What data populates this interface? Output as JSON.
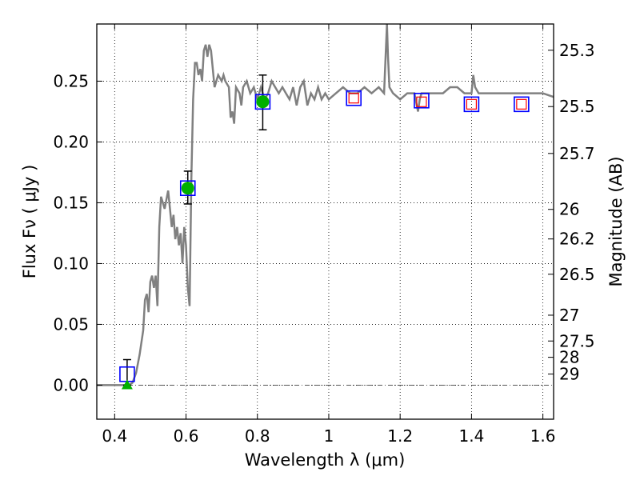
{
  "chart_data": {
    "type": "scatter",
    "title": "",
    "xlabel": "Wavelength  λ (μm)",
    "ylabel": "Flux  Fν  ( μJy )",
    "y2label": "Magnitude (AB)",
    "xlim": [
      0.35,
      1.63
    ],
    "ylim": [
      -0.028,
      0.297
    ],
    "grid": true,
    "x_ticks": [
      {
        "value": 0.4,
        "label": "0.4"
      },
      {
        "value": 0.6,
        "label": "0.6"
      },
      {
        "value": 0.8,
        "label": "0.8"
      },
      {
        "value": 1.0,
        "label": "1"
      },
      {
        "value": 1.2,
        "label": "1.2"
      },
      {
        "value": 1.4,
        "label": "1.4"
      },
      {
        "value": 1.6,
        "label": "1.6"
      }
    ],
    "y_ticks": [
      {
        "value": 0.0,
        "label": "0.00"
      },
      {
        "value": 0.05,
        "label": "0.05"
      },
      {
        "value": 0.1,
        "label": "0.10"
      },
      {
        "value": 0.15,
        "label": "0.15"
      },
      {
        "value": 0.2,
        "label": "0.20"
      },
      {
        "value": 0.25,
        "label": "0.25"
      }
    ],
    "y2_ticks": [
      {
        "value": 25.3,
        "label": "25.3"
      },
      {
        "value": 25.5,
        "label": "25.5"
      },
      {
        "value": 25.7,
        "label": "25.7"
      },
      {
        "value": 26.0,
        "label": "26"
      },
      {
        "value": 26.2,
        "label": "26.2"
      },
      {
        "value": 26.5,
        "label": "26.5"
      },
      {
        "value": 27.0,
        "label": "27"
      },
      {
        "value": 27.5,
        "label": "27.5"
      },
      {
        "value": 28.0,
        "label": "28"
      },
      {
        "value": 29.0,
        "label": "29"
      }
    ],
    "colors": {
      "spectrum": "#808080",
      "model_box": "#0000ff",
      "observed_box": "#ff0000",
      "detection": "#00b000",
      "errorbar": "#000000",
      "zero_line": "#555555"
    },
    "series": [
      {
        "kind": "spectrum",
        "x": [
          0.35,
          0.44,
          0.45,
          0.46,
          0.47,
          0.48,
          0.485,
          0.49,
          0.495,
          0.5,
          0.505,
          0.51,
          0.515,
          0.52,
          0.525,
          0.53,
          0.54,
          0.55,
          0.56,
          0.565,
          0.57,
          0.575,
          0.58,
          0.585,
          0.59,
          0.595,
          0.6,
          0.605,
          0.61,
          0.615,
          0.62,
          0.625,
          0.63,
          0.635,
          0.64,
          0.645,
          0.65,
          0.655,
          0.66,
          0.665,
          0.67,
          0.675,
          0.68,
          0.69,
          0.7,
          0.705,
          0.71,
          0.72,
          0.725,
          0.73,
          0.735,
          0.74,
          0.75,
          0.755,
          0.76,
          0.77,
          0.78,
          0.79,
          0.8,
          0.81,
          0.82,
          0.83,
          0.84,
          0.85,
          0.86,
          0.87,
          0.88,
          0.89,
          0.9,
          0.91,
          0.92,
          0.93,
          0.94,
          0.95,
          0.96,
          0.97,
          0.98,
          0.99,
          1.0,
          1.02,
          1.04,
          1.06,
          1.08,
          1.1,
          1.12,
          1.14,
          1.155,
          1.16,
          1.163,
          1.166,
          1.17,
          1.18,
          1.2,
          1.22,
          1.24,
          1.25,
          1.255,
          1.26,
          1.28,
          1.3,
          1.32,
          1.34,
          1.36,
          1.38,
          1.4,
          1.405,
          1.41,
          1.42,
          1.44,
          1.46,
          1.48,
          1.5,
          1.52,
          1.54,
          1.56,
          1.58,
          1.6,
          1.63
        ],
        "y": [
          0.0,
          0.0,
          0.002,
          0.01,
          0.025,
          0.045,
          0.07,
          0.075,
          0.06,
          0.085,
          0.09,
          0.08,
          0.09,
          0.065,
          0.13,
          0.155,
          0.145,
          0.16,
          0.13,
          0.14,
          0.12,
          0.13,
          0.115,
          0.125,
          0.1,
          0.13,
          0.115,
          0.08,
          0.065,
          0.17,
          0.235,
          0.265,
          0.265,
          0.255,
          0.26,
          0.25,
          0.275,
          0.28,
          0.27,
          0.28,
          0.275,
          0.26,
          0.245,
          0.255,
          0.25,
          0.255,
          0.25,
          0.245,
          0.22,
          0.225,
          0.215,
          0.245,
          0.24,
          0.23,
          0.245,
          0.25,
          0.24,
          0.245,
          0.235,
          0.245,
          0.235,
          0.24,
          0.25,
          0.245,
          0.24,
          0.245,
          0.24,
          0.235,
          0.245,
          0.23,
          0.245,
          0.25,
          0.23,
          0.24,
          0.235,
          0.245,
          0.235,
          0.24,
          0.235,
          0.24,
          0.245,
          0.24,
          0.24,
          0.245,
          0.24,
          0.245,
          0.24,
          0.275,
          0.3,
          0.27,
          0.245,
          0.24,
          0.235,
          0.24,
          0.24,
          0.225,
          0.235,
          0.24,
          0.24,
          0.24,
          0.24,
          0.245,
          0.245,
          0.24,
          0.24,
          0.255,
          0.245,
          0.24,
          0.24,
          0.24,
          0.24,
          0.24,
          0.24,
          0.24,
          0.24,
          0.24,
          0.24,
          0.237
        ]
      },
      {
        "kind": "model_boxes",
        "x": [
          0.435,
          0.605,
          0.815,
          1.07,
          1.26,
          1.4,
          1.54
        ],
        "y": [
          0.009,
          0.162,
          0.233,
          0.236,
          0.234,
          0.231,
          0.231
        ]
      },
      {
        "kind": "observed_boxes",
        "x": [
          1.07,
          1.26,
          1.4,
          1.54
        ],
        "y": [
          0.236,
          0.233,
          0.231,
          0.231
        ]
      },
      {
        "kind": "detections",
        "x": [
          0.605,
          0.815
        ],
        "y": [
          0.162,
          0.233
        ],
        "err_low": [
          0.149,
          0.21
        ],
        "err_high": [
          0.176,
          0.255
        ]
      },
      {
        "kind": "upper_limit",
        "x": [
          0.435
        ],
        "y": [
          0.0
        ],
        "err_low": [
          0.0
        ],
        "err_high": [
          0.021
        ]
      }
    ]
  }
}
